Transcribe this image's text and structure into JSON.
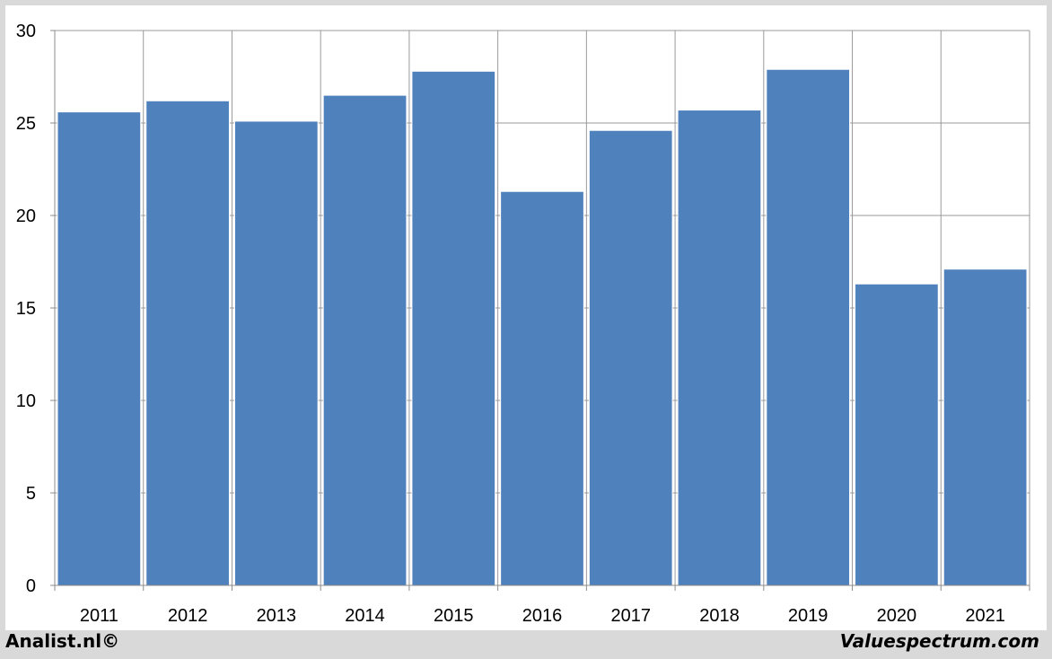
{
  "chart_data": {
    "type": "bar",
    "title": "",
    "xlabel": "",
    "ylabel": "",
    "categories": [
      "2011",
      "2012",
      "2013",
      "2014",
      "2015",
      "2016",
      "2017",
      "2018",
      "2019",
      "2020",
      "2021"
    ],
    "values": [
      25.6,
      26.2,
      25.1,
      26.5,
      27.8,
      21.3,
      24.6,
      25.7,
      27.9,
      16.3,
      17.1
    ],
    "ylim": [
      0,
      30
    ],
    "yticks": [
      0,
      5,
      10,
      15,
      20,
      25,
      30
    ],
    "grid": true,
    "bar_color": "#4f81bd",
    "legend": "none"
  },
  "footer": {
    "left_text": "Analist.nl©",
    "right_text": "Valuespectrum.com"
  }
}
